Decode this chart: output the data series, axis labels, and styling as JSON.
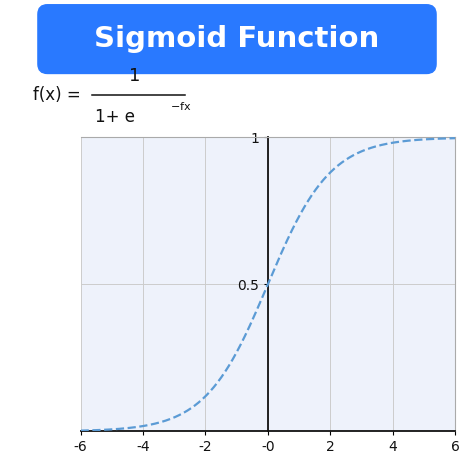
{
  "title": "Sigmoid Function",
  "title_bg_color": "#2979FF",
  "title_text_color": "#FFFFFF",
  "curve_color": "#5b9bd5",
  "curve_linestyle": "--",
  "curve_linewidth": 1.6,
  "x_min": -6,
  "x_max": 6,
  "y_min": 0,
  "y_max": 1,
  "ytick_values": [
    0.5,
    1
  ],
  "ytick_labels": [
    "0.5",
    "1"
  ],
  "xtick_values": [
    -6,
    -4,
    -2,
    0,
    2,
    4,
    6
  ],
  "xtick_labels": [
    "-6",
    "-4",
    "-2",
    "0",
    "2",
    "4",
    "6"
  ],
  "grid_color": "#cccccc",
  "grid_linewidth": 0.7,
  "background_color": "#ffffff",
  "plot_bg_color": "#eef2fb",
  "axis_color": "#111111",
  "spine_color": "#aaaaaa",
  "title_fontsize": 21,
  "formula_fontsize": 12
}
